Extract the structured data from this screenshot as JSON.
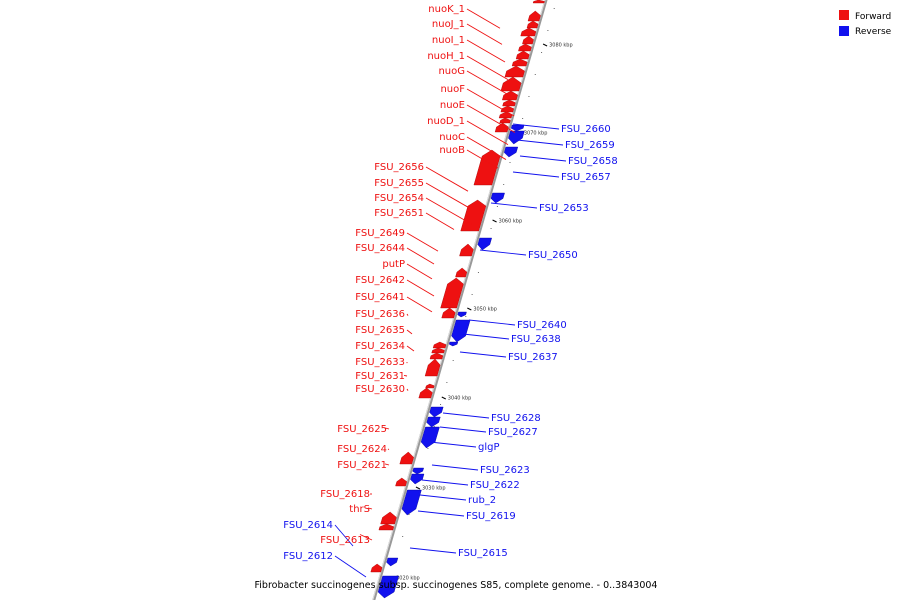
{
  "caption": "Fibrobacter succinogenes subsp. succinogenes S85, complete genome. - 0..3843004",
  "legend": [
    {
      "label": "Forward",
      "color": "#ee1111"
    },
    {
      "label": "Reverse",
      "color": "#1111ee"
    }
  ],
  "colors": {
    "forward": "#ee1111",
    "reverse": "#1111ee",
    "backbone": "#999999"
  },
  "ticks": [
    "3080 kbp",
    "3070 kbp",
    "3060 kbp",
    "3050 kbp",
    "3040 kbp",
    "3030 kbp",
    "3020 kbp"
  ],
  "forward_genes": [
    "nuoK_1",
    "nuoJ_1",
    "nuoI_1",
    "nuoH_1",
    "nuoG",
    "nuoF",
    "nuoE",
    "nuoD_1",
    "nuoC",
    "nuoB",
    "FSU_2656",
    "FSU_2655",
    "FSU_2654",
    "FSU_2651",
    "FSU_2649",
    "FSU_2644",
    "putP",
    "FSU_2642",
    "FSU_2641",
    "FSU_2636",
    "FSU_2635",
    "FSU_2634",
    "FSU_2633",
    "FSU_2631",
    "FSU_2630",
    "FSU_2625",
    "FSU_2624",
    "FSU_2621",
    "FSU_2618",
    "thrS",
    "FSU_2613"
  ],
  "reverse_genes": [
    "FSU_2660",
    "FSU_2659",
    "FSU_2658",
    "FSU_2657",
    "FSU_2653",
    "FSU_2650",
    "FSU_2640",
    "FSU_2638",
    "FSU_2637",
    "FSU_2628",
    "FSU_2627",
    "glgP",
    "FSU_2623",
    "FSU_2622",
    "rub_2",
    "FSU_2619",
    "FSU_2615",
    "FSU_2614",
    "FSU_2612"
  ]
}
